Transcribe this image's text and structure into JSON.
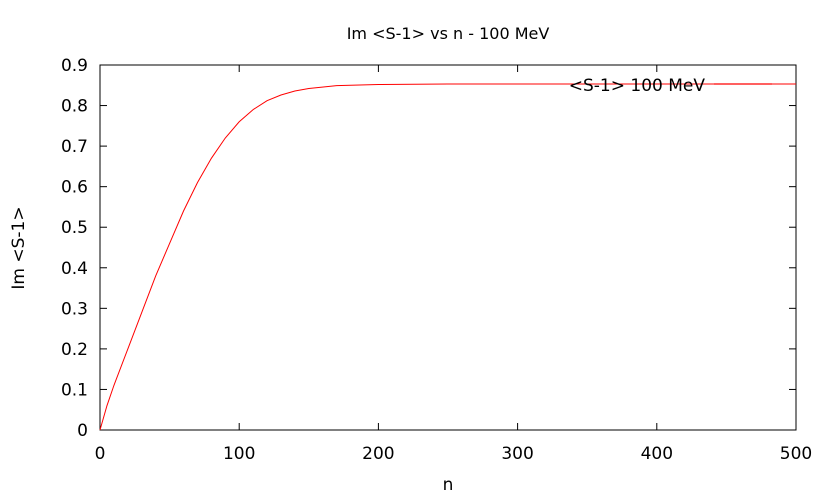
{
  "chart_data": {
    "type": "line",
    "title": "Im <S-1> vs n - 100 MeV",
    "xlabel": "n",
    "ylabel": "Im <S-1>",
    "xlim": [
      0,
      500
    ],
    "ylim": [
      0,
      0.9
    ],
    "xticks": [
      "0",
      "100",
      "200",
      "300",
      "400",
      "500"
    ],
    "yticks": [
      "0",
      "0.1",
      "0.2",
      "0.3",
      "0.4",
      "0.5",
      "0.6",
      "0.7",
      "0.8",
      "0.9"
    ],
    "grid": false,
    "legend_position": "top-right",
    "series": [
      {
        "name": "<S-1> 100 MeV",
        "color": "#ff0000",
        "x": [
          0,
          5,
          10,
          20,
          30,
          40,
          50,
          60,
          70,
          80,
          90,
          100,
          110,
          120,
          130,
          140,
          150,
          170,
          200,
          250,
          300,
          350,
          400,
          450,
          500
        ],
        "y": [
          0,
          0.06,
          0.11,
          0.2,
          0.29,
          0.38,
          0.46,
          0.54,
          0.61,
          0.67,
          0.72,
          0.76,
          0.79,
          0.812,
          0.826,
          0.836,
          0.842,
          0.849,
          0.852,
          0.853,
          0.853,
          0.853,
          0.853,
          0.853,
          0.853
        ]
      }
    ]
  }
}
